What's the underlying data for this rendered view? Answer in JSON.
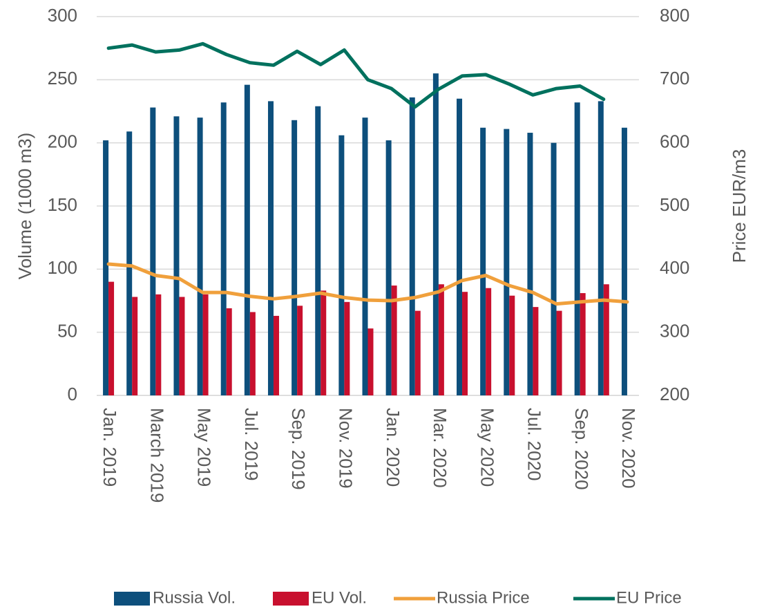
{
  "chart_data": {
    "type": "bar_line",
    "categories": [
      "Jan. 2019",
      null,
      "March 2019",
      null,
      "May 2019",
      null,
      "Jul. 2019",
      null,
      "Sep. 2019",
      null,
      "Nov. 2019",
      null,
      "Jan. 2020",
      null,
      "Mar. 2020",
      null,
      "May 2020",
      null,
      "Jul. 2020",
      null,
      "Sep. 2020",
      null,
      "Nov. 2020"
    ],
    "y_label": "Volume (1000 m3)",
    "y2_label": "Price EUR/m3",
    "ylim": [
      0,
      300
    ],
    "yticks": [
      0,
      50,
      100,
      150,
      200,
      250,
      300
    ],
    "y2lim": [
      200,
      800
    ],
    "y2ticks": [
      200,
      300,
      400,
      500,
      600,
      700,
      800
    ],
    "grid": true,
    "legend": "bottom",
    "series": [
      {
        "name": "Russia Vol.",
        "type": "bar",
        "color": "#0d4f7c",
        "values": [
          202,
          209,
          228,
          221,
          220,
          232,
          246,
          233,
          218,
          229,
          206,
          220,
          202,
          236,
          255,
          235,
          212,
          211,
          208,
          200,
          232,
          233,
          212
        ]
      },
      {
        "name": "EU Vol.",
        "type": "bar",
        "color": "#c8102e",
        "values": [
          90,
          78,
          80,
          78,
          80,
          69,
          66,
          63,
          71,
          83,
          74,
          53,
          87,
          67,
          88,
          82,
          85,
          79,
          70,
          67,
          81,
          88,
          null
        ]
      },
      {
        "name": "Russia Price",
        "type": "line",
        "axis": "y2",
        "color": "#f0a03c",
        "values": [
          408,
          405,
          390,
          385,
          363,
          363,
          357,
          353,
          357,
          362,
          355,
          351,
          350,
          355,
          364,
          382,
          390,
          374,
          363,
          345,
          348,
          351,
          348
        ]
      },
      {
        "name": "EU Price",
        "type": "line",
        "axis": "y2",
        "color": "#00715e",
        "values": [
          750,
          755,
          744,
          747,
          757,
          740,
          727,
          723,
          745,
          724,
          747,
          700,
          686,
          657,
          685,
          706,
          708,
          693,
          676,
          686,
          690,
          669,
          null
        ]
      }
    ]
  }
}
